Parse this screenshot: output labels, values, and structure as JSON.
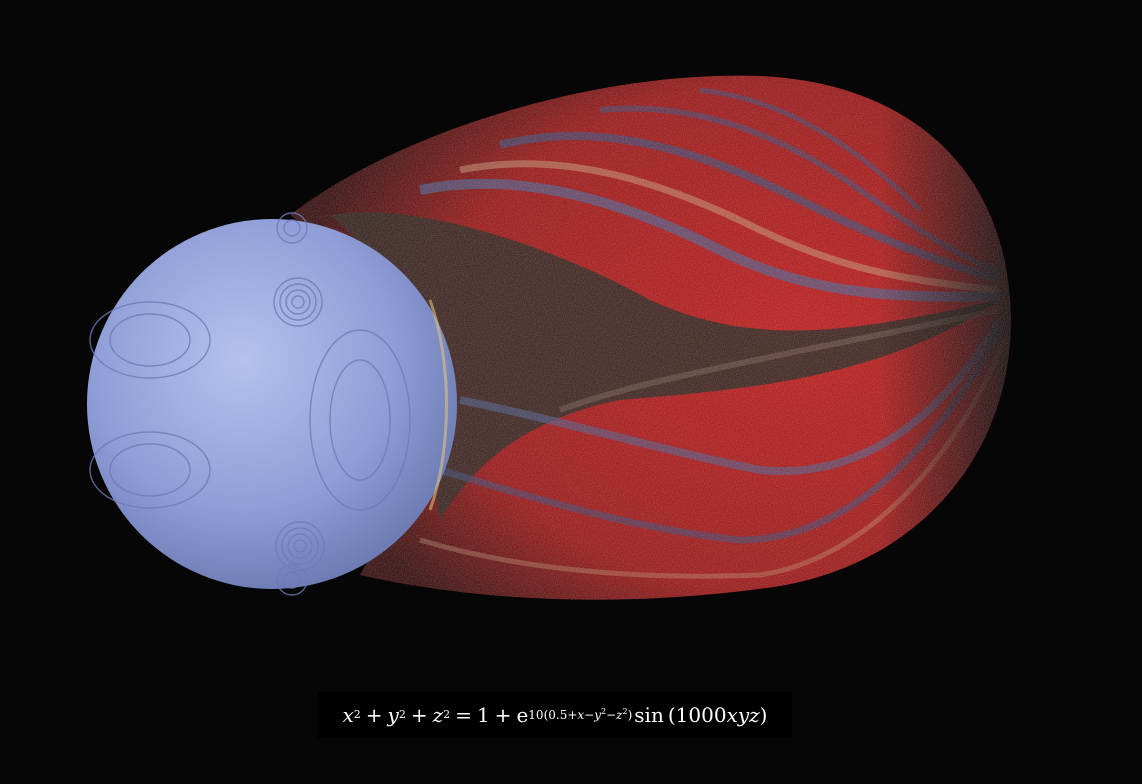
{
  "equation": {
    "latex": "x^2 + y^2 + z^2 = 1 + e^{10(0.5+x-y^2-z^2)} \\sin(1000xyz)",
    "lhs_x": "x",
    "lhs_y": "y",
    "lhs_z": "z",
    "exp_2": "2",
    "equals": "=",
    "plus": "+",
    "one": "1",
    "e": "e",
    "exponent_coeff": "10",
    "exponent_inner_a": "0.5+",
    "exponent_x": "x",
    "exponent_minus": "−",
    "exponent_y": "y",
    "exponent_z": "z",
    "sin_label": "sin",
    "sin_arg_number": "1000",
    "sin_arg_vars": "xyz"
  },
  "colors": {
    "background": "#060606",
    "sphere": "#8b9bd6",
    "plume_red": "#e01818",
    "plume_dark": "#3a2620",
    "bands_blue": "#4a5a8a"
  }
}
